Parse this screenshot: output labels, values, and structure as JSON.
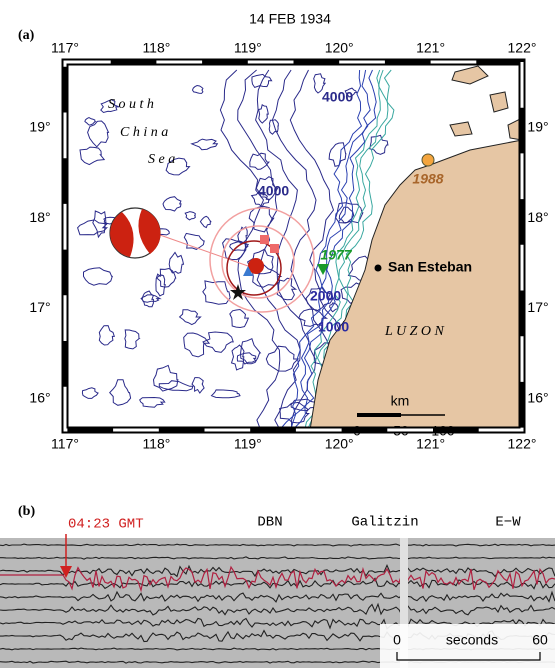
{
  "panel_a": {
    "label": "(a)",
    "title": "14 FEB 1934",
    "lon_labels": [
      "117°",
      "118°",
      "119°",
      "120°",
      "121°",
      "122°"
    ],
    "lat_labels": [
      "19°",
      "18°",
      "17°",
      "16°"
    ],
    "sea_label": [
      "S o u t h",
      "C h i n a",
      "S e a"
    ],
    "contours": [
      "4000",
      "4000",
      "2000",
      "1000"
    ],
    "events": [
      "1988",
      "1977"
    ],
    "town": "San Esteban",
    "land": "L U Z O N",
    "scale": {
      "unit": "km",
      "ticks": [
        "0",
        "50",
        "100"
      ]
    }
  },
  "panel_b": {
    "label": "(b)",
    "time": "04:23 GMT",
    "station": "DBN",
    "instrument": "Galitzin",
    "component": "E−W",
    "scale": {
      "unit": "seconds",
      "ticks": [
        "0",
        "60"
      ]
    }
  }
}
